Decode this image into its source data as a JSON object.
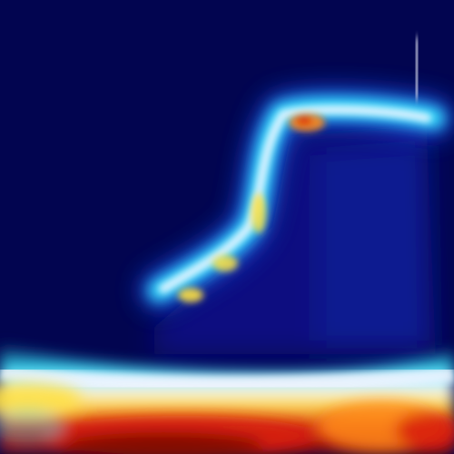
{
  "image": {
    "kind": "heatmap-overlay",
    "colormap": "jet",
    "colors": {
      "background": "#020550",
      "dark_blue": "#0a1090",
      "blue": "#1e5cff",
      "cyan": "#38e8ff",
      "white": "#f2f4ff",
      "yellow": "#ffe040",
      "orange": "#ff8a1a",
      "red": "#d81e10",
      "dark_red": "#7a0606"
    },
    "regions": [
      {
        "name": "boot-outline-glow",
        "peak": "yellow",
        "ramp": "cyan-to-white"
      },
      {
        "name": "bottom-floor-band",
        "peak": "dark_red",
        "ramp": "cyan-to-yellow-to-red"
      }
    ]
  }
}
